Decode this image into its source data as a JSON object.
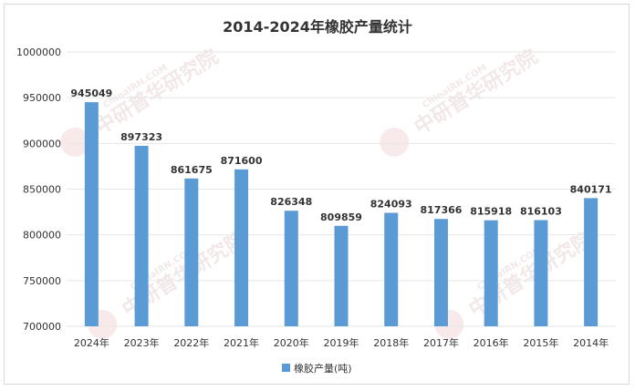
{
  "chart_data": {
    "type": "bar",
    "title": "2014-2024年橡胶产量统计",
    "categories": [
      "2024年",
      "2023年",
      "2022年",
      "2021年",
      "2020年",
      "2019年",
      "2018年",
      "2017年",
      "2016年",
      "2015年",
      "2014年"
    ],
    "series": [
      {
        "name": "橡胶产量(吨)",
        "values": [
          945049,
          897323,
          861675,
          871600,
          826348,
          809859,
          824093,
          817366,
          815918,
          816103,
          840171
        ]
      }
    ],
    "data_labels": [
      "945049",
      "897323",
      "861675",
      "871600",
      "826348",
      "809859",
      "824093",
      "817366",
      "815918",
      "816103",
      "840171"
    ],
    "yticks": [
      "700000",
      "750000",
      "800000",
      "850000",
      "900000",
      "950000",
      "1000000"
    ],
    "ylim": [
      700000,
      1000000
    ],
    "grid": true,
    "legend_position": "bottom",
    "bar_color": "#5b9bd5",
    "xlabel": "",
    "ylabel": ""
  },
  "watermark": {
    "text": "中研普华研究院",
    "latin": "ChinaIRN.COM",
    "logo": "CIRN",
    "color": "#e0b8b8"
  }
}
